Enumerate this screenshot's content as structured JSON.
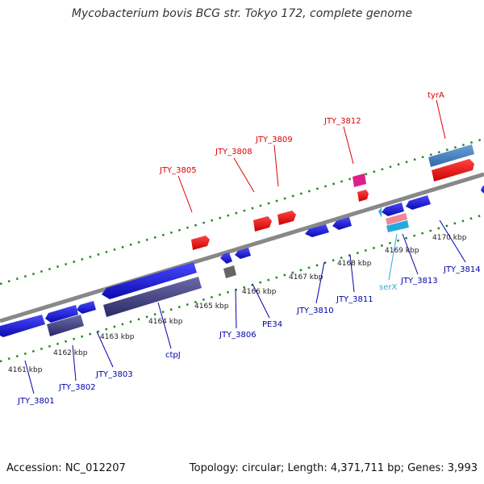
{
  "title": "Mycobacterium bovis BCG str. Tokyo 172, complete genome",
  "footer": {
    "accession": "Accession: NC_012207",
    "summary": "Topology: circular; Length: 4,371,711 bp; Genes: 3,993"
  },
  "colors": {
    "forward_gene": "#ff0000",
    "reverse_gene": "#1a1aee",
    "pseudo_gene": "#8a8aa6",
    "rna": "#33aadd",
    "other": "#dd2288",
    "backbone": "#888888",
    "tick": "#228822",
    "forward_label": "#dd0000",
    "reverse_label": "#0000aa",
    "rna_label": "#33aadd"
  },
  "kbp_labels": [
    "4161 kbp",
    "4162 kbp",
    "4163 kbp",
    "4164 kbp",
    "4165 kbp",
    "4166 kbp",
    "4167 kbp",
    "4168 kbp",
    "4169 kbp",
    "4170 kbp"
  ],
  "forward_labels": [
    {
      "text": "JTY_3805"
    },
    {
      "text": "JTY_3808"
    },
    {
      "text": "JTY_3809"
    },
    {
      "text": "JTY_3812"
    },
    {
      "text": "tyrA"
    }
  ],
  "reverse_labels": [
    {
      "text": "JTY_3801"
    },
    {
      "text": "JTY_3802"
    },
    {
      "text": "JTY_3803"
    },
    {
      "text": "ctpJ"
    },
    {
      "text": "JTY_3806"
    },
    {
      "text": "PE34"
    },
    {
      "text": "JTY_3810"
    },
    {
      "text": "JTY_3811"
    },
    {
      "text": "serX"
    },
    {
      "text": "JTY_3813"
    },
    {
      "text": "JTY_3814"
    }
  ]
}
